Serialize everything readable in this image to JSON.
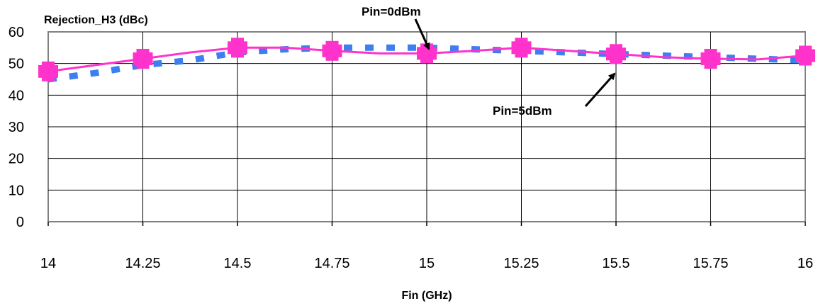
{
  "chart_data": {
    "type": "line",
    "ylabel": "Rejection_H3 (dBc)",
    "xlabel": "Fin (GHz)",
    "x": [
      14,
      14.25,
      14.5,
      14.75,
      15,
      15.25,
      15.5,
      15.75,
      16
    ],
    "x_tick_labels": [
      "14",
      "14.25",
      "14.5",
      "14.75",
      "15",
      "15.25",
      "15.5",
      "15.75",
      "16"
    ],
    "y_ticks": [
      0,
      10,
      20,
      30,
      40,
      50,
      60
    ],
    "xlim": [
      14,
      16
    ],
    "ylim": [
      0,
      60
    ],
    "grid": "horizontal and vertical",
    "series": [
      {
        "label": "Pin=0dBm",
        "color": "#3d7fef",
        "style": "dashed",
        "x": [
          14,
          14.125,
          14.25,
          14.375,
          14.5,
          14.625,
          14.75,
          14.875,
          15,
          15.125,
          15.25,
          15.375,
          15.5,
          15.625,
          15.75,
          15.875,
          16
        ],
        "values": [
          45,
          47,
          49.5,
          51,
          53.5,
          54.5,
          55,
          55,
          55,
          54.5,
          54,
          53.5,
          53,
          52.5,
          52,
          51.5,
          51
        ]
      },
      {
        "label": "Pin=5dBm",
        "color": "#ff33cc",
        "style": "solid",
        "x": [
          14,
          14.125,
          14.25,
          14.375,
          14.5,
          14.625,
          14.75,
          14.875,
          15,
          15.125,
          15.25,
          15.375,
          15.5,
          15.625,
          15.75,
          15.875,
          16
        ],
        "values": [
          47.5,
          49.5,
          51.5,
          53.5,
          55,
          55,
          54,
          53.2,
          53.2,
          54,
          55,
          54,
          53,
          52,
          51.5,
          51.3,
          52.5
        ],
        "marker_x": [
          14,
          14.25,
          14.5,
          14.75,
          15,
          15.25,
          15.5,
          15.75,
          16
        ],
        "marker_values": [
          47.5,
          51.5,
          55,
          54,
          53.2,
          55,
          53,
          51.5,
          52.5
        ]
      }
    ],
    "annotations": [
      {
        "text": "Pin=0dBm",
        "points_to": {
          "x": 15,
          "y": 55
        }
      },
      {
        "text": "Pin=5dBm",
        "points_to": {
          "x": 15.5,
          "y": 53
        }
      }
    ]
  }
}
